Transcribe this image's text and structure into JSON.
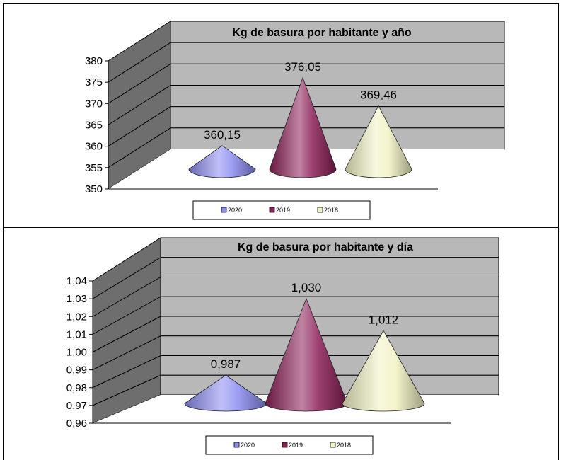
{
  "chart_data": [
    {
      "type": "cone",
      "title": "Kg de basura por habitante y año",
      "categories": [
        "2020",
        "2019",
        "2018"
      ],
      "values": [
        360.15,
        376.05,
        369.46
      ],
      "value_labels": [
        "360,15",
        "376,05",
        "369,46"
      ],
      "ylim": [
        350,
        380
      ],
      "y_ticks": [
        "350",
        "355",
        "360",
        "365",
        "370",
        "375",
        "380"
      ],
      "colors": [
        "#8c8cf0",
        "#8a1e55",
        "#f2f2c4"
      ],
      "legend": [
        "2020",
        "2019",
        "2018"
      ],
      "legend_position": "bottom",
      "grid": true
    },
    {
      "type": "cone",
      "title": "Kg de basura por habitante y día",
      "categories": [
        "2020",
        "2019",
        "2018"
      ],
      "values": [
        0.987,
        1.03,
        1.012
      ],
      "value_labels": [
        "0,987",
        "1,030",
        "1,012"
      ],
      "ylim": [
        0.96,
        1.04
      ],
      "y_ticks": [
        "0,96",
        "0,97",
        "0,98",
        "0,99",
        "1,00",
        "1,01",
        "1,02",
        "1,03",
        "1,04"
      ],
      "colors": [
        "#8c8cf0",
        "#8a1e55",
        "#f2f2c4"
      ],
      "legend": [
        "2020",
        "2019",
        "2018"
      ],
      "legend_position": "bottom",
      "grid": true
    }
  ]
}
